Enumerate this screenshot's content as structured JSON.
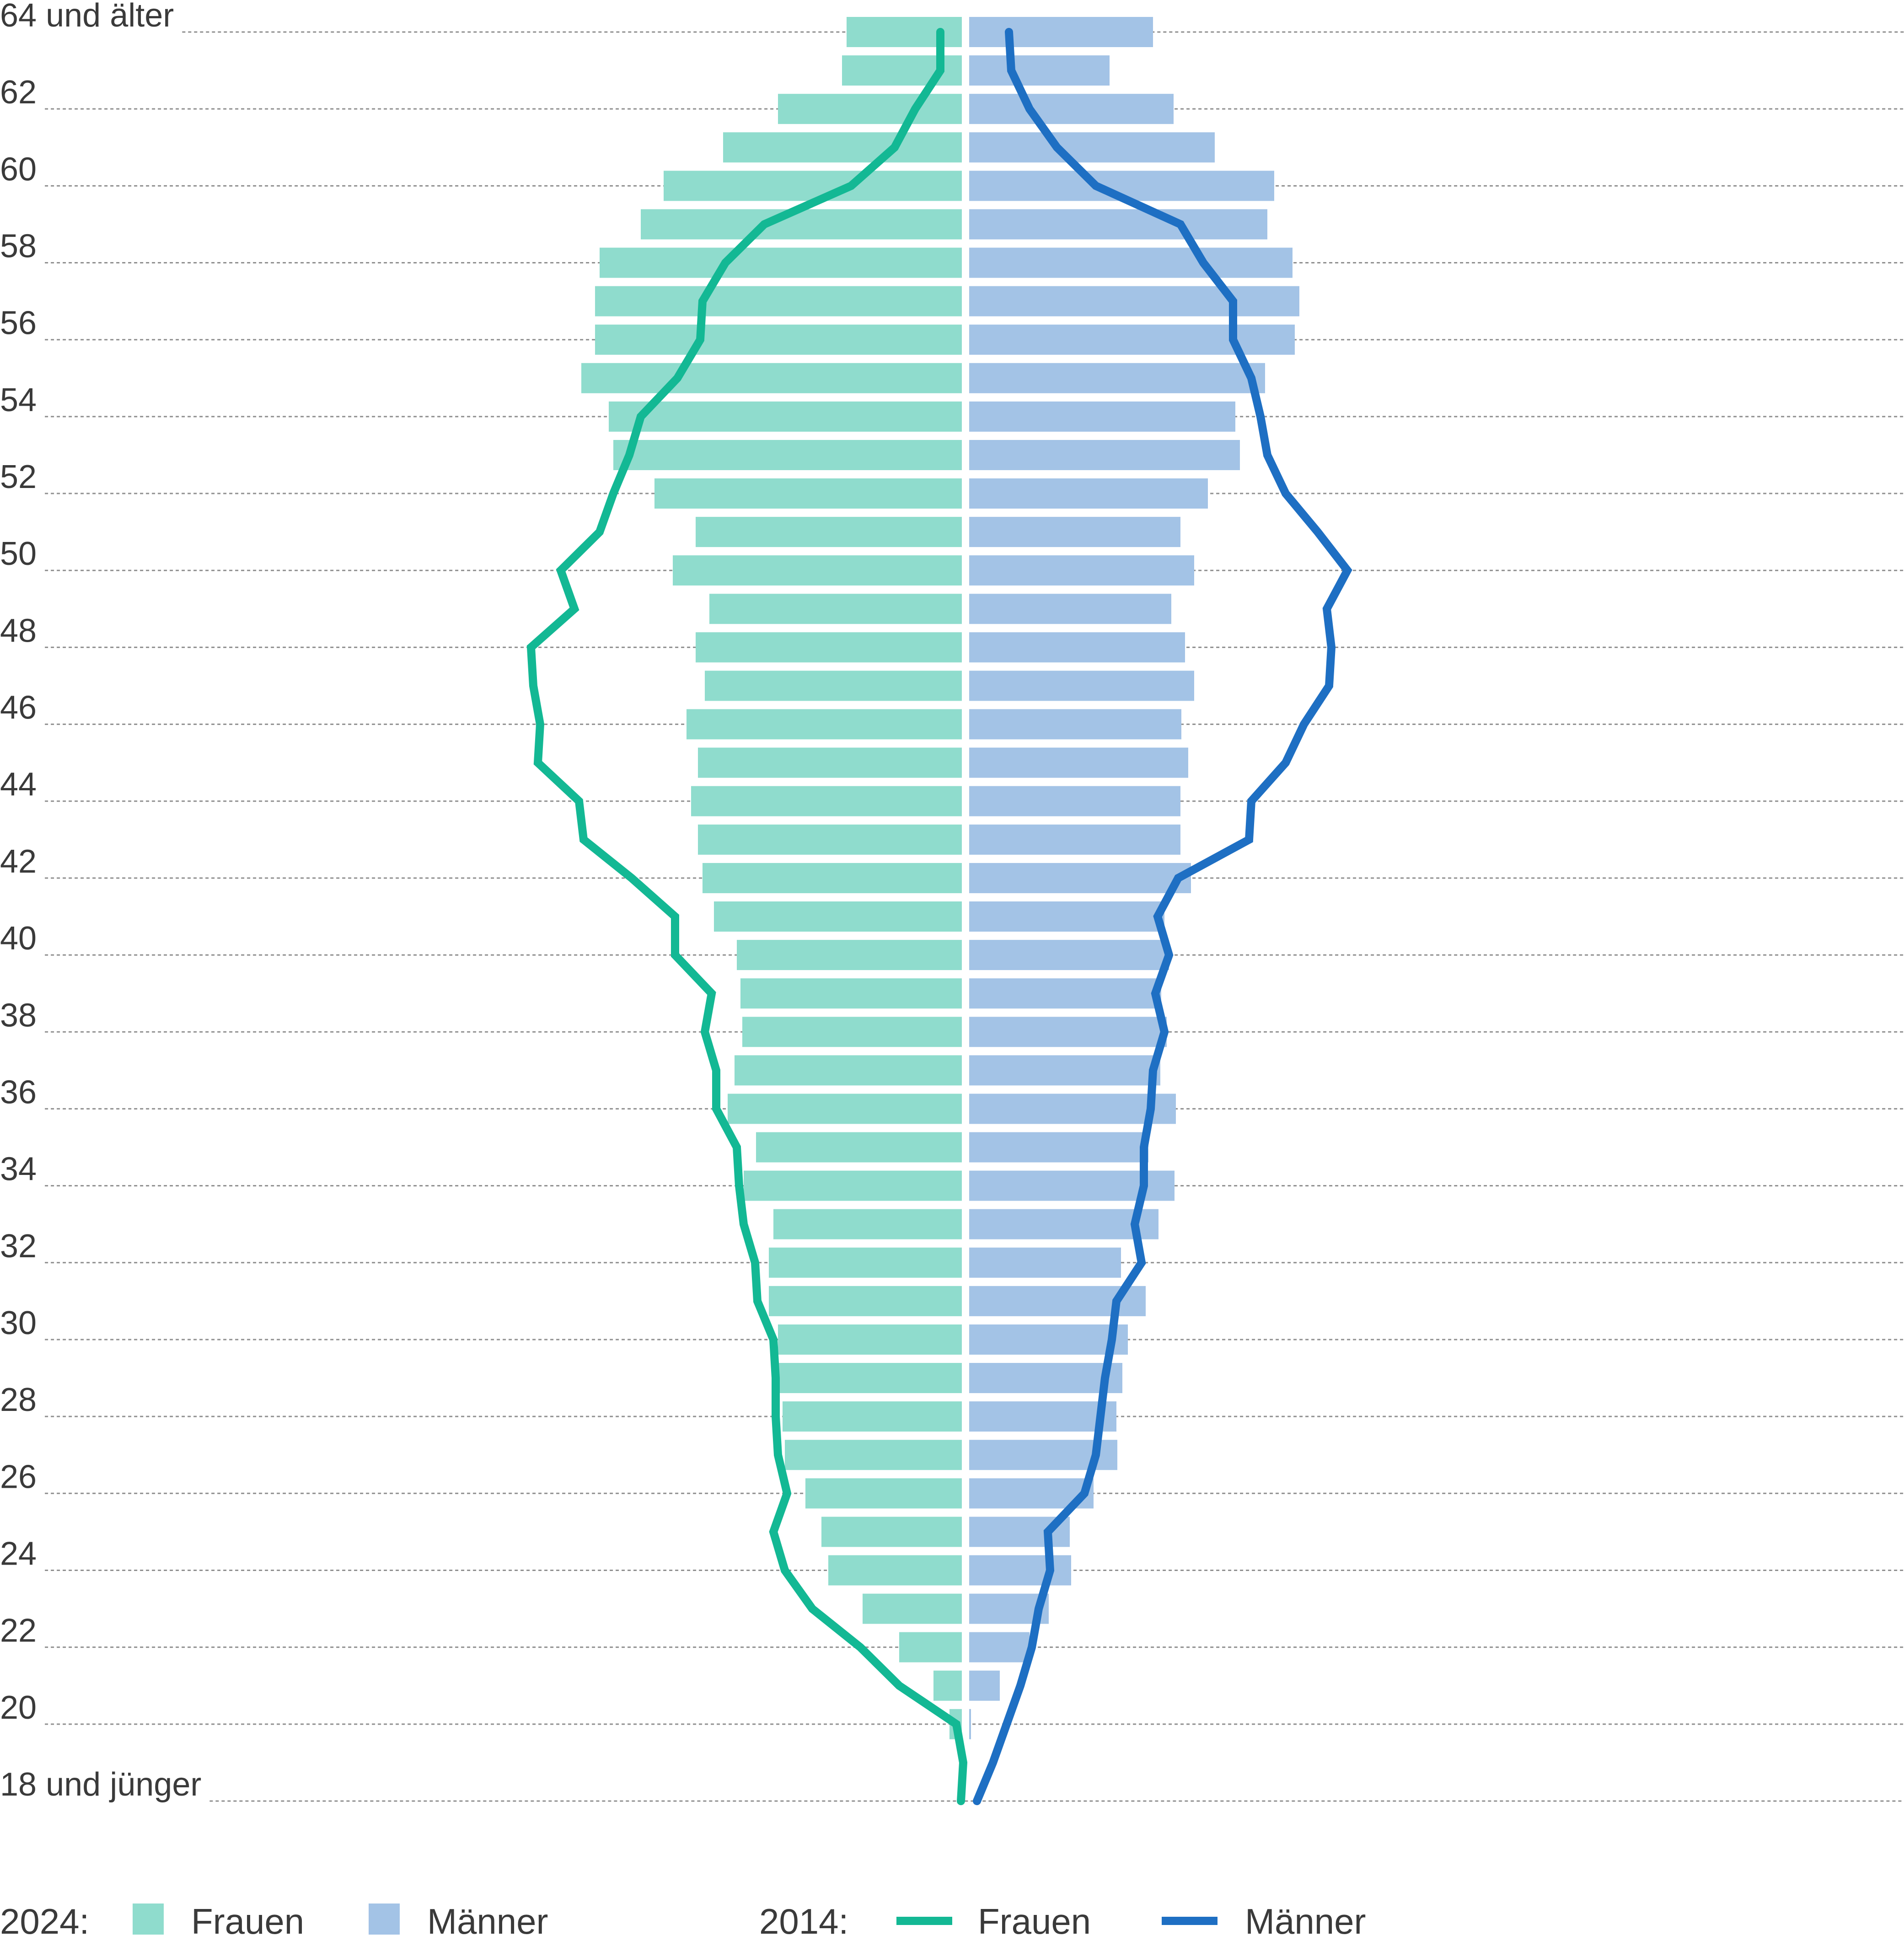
{
  "chart_data": {
    "type": "bar",
    "orientation": "horizontal-pyramid",
    "title": "",
    "xlabel": "",
    "ylabel": "",
    "age_min": 18,
    "age_max": 64,
    "y_tick_labels": [
      {
        "age": 64,
        "label": "64 und älter"
      },
      {
        "age": 62,
        "label": "62"
      },
      {
        "age": 60,
        "label": "60"
      },
      {
        "age": 58,
        "label": "58"
      },
      {
        "age": 56,
        "label": "56"
      },
      {
        "age": 54,
        "label": "54"
      },
      {
        "age": 52,
        "label": "52"
      },
      {
        "age": 50,
        "label": "50"
      },
      {
        "age": 48,
        "label": "48"
      },
      {
        "age": 46,
        "label": "46"
      },
      {
        "age": 44,
        "label": "44"
      },
      {
        "age": 42,
        "label": "42"
      },
      {
        "age": 40,
        "label": "40"
      },
      {
        "age": 38,
        "label": "38"
      },
      {
        "age": 36,
        "label": "36"
      },
      {
        "age": 34,
        "label": "34"
      },
      {
        "age": 32,
        "label": "32"
      },
      {
        "age": 30,
        "label": "30"
      },
      {
        "age": 28,
        "label": "28"
      },
      {
        "age": 26,
        "label": "26"
      },
      {
        "age": 24,
        "label": "24"
      },
      {
        "age": 22,
        "label": "22"
      },
      {
        "age": 20,
        "label": "20"
      },
      {
        "age": 18,
        "label": "18 und jünger"
      }
    ],
    "x_range": [
      -1100,
      1100
    ],
    "grid": true,
    "ages": [
      64,
      63,
      62,
      61,
      60,
      59,
      58,
      57,
      56,
      55,
      54,
      53,
      52,
      51,
      50,
      49,
      48,
      47,
      46,
      45,
      44,
      43,
      42,
      41,
      40,
      39,
      38,
      37,
      36,
      35,
      34,
      33,
      32,
      31,
      30,
      29,
      28,
      27,
      26,
      25,
      24,
      23,
      22,
      21,
      20,
      19,
      18
    ],
    "series": [
      {
        "name": "Frauen",
        "year": "2024",
        "kind": "bar",
        "color": "#8fdccd",
        "values": [
          260,
          270,
          410,
          530,
          660,
          710,
          800,
          810,
          810,
          840,
          780,
          770,
          680,
          590,
          640,
          560,
          590,
          570,
          610,
          585,
          600,
          585,
          575,
          550,
          500,
          492,
          488,
          505,
          520,
          458,
          485,
          420,
          430,
          430,
          410,
          410,
          400,
          395,
          350,
          315,
          300,
          225,
          145,
          70,
          35,
          0,
          0
        ]
      },
      {
        "name": "Männer",
        "year": "2024",
        "kind": "bar",
        "color": "#a3c3e6",
        "values": [
          410,
          315,
          455,
          545,
          675,
          660,
          715,
          730,
          720,
          655,
          590,
          600,
          530,
          470,
          500,
          450,
          480,
          500,
          472,
          487,
          470,
          470,
          493,
          435,
          445,
          428,
          440,
          426,
          460,
          400,
          457,
          422,
          340,
          394,
          355,
          343,
          330,
          332,
          280,
          228,
          231,
          182,
          140,
          75,
          12,
          0,
          0
        ]
      },
      {
        "name": "Frauen",
        "year": "2014",
        "kind": "line",
        "color": "#13b894",
        "values": [
          55,
          55,
          110,
          155,
          250,
          440,
          525,
          575,
          580,
          630,
          710,
          735,
          770,
          800,
          885,
          855,
          950,
          945,
          930,
          935,
          845,
          835,
          730,
          635,
          635,
          555,
          570,
          545,
          545,
          500,
          495,
          485,
          460,
          455,
          420,
          415,
          415,
          410,
          390,
          420,
          395,
          335,
          230,
          145,
          20,
          5,
          10
        ]
      },
      {
        "name": "Männer",
        "year": "2014",
        "kind": "line",
        "color": "#1e6fc3",
        "values": [
          95,
          100,
          140,
          200,
          285,
          470,
          520,
          585,
          585,
          625,
          645,
          660,
          700,
          770,
          835,
          790,
          800,
          795,
          740,
          700,
          625,
          620,
          465,
          420,
          445,
          415,
          435,
          410,
          405,
          390,
          390,
          370,
          385,
          330,
          320,
          305,
          295,
          285,
          260,
          180,
          185,
          160,
          145,
          120,
          90,
          60,
          25
        ]
      }
    ]
  },
  "legend": {
    "year_2024": "2024:",
    "year_2014": "2014:",
    "frauen_2024": "Frauen",
    "maenner_2024": "Männer",
    "frauen_2014": "Frauen",
    "maenner_2014": "Männer"
  }
}
